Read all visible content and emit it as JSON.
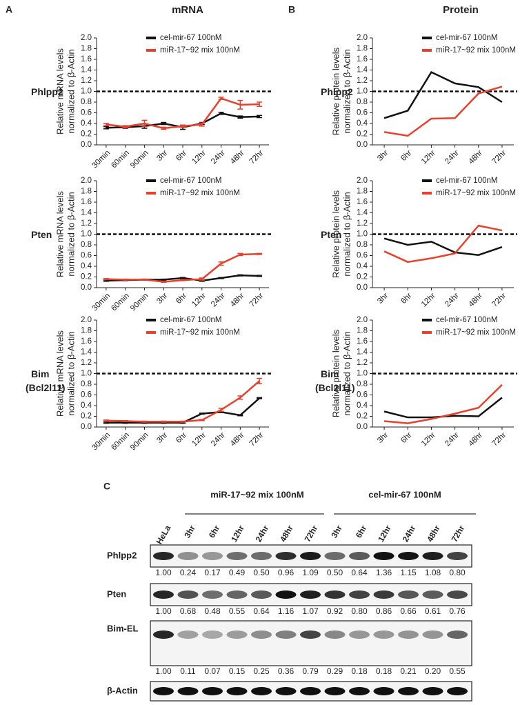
{
  "panels": [
    {
      "letter": "A",
      "title": "mRNA"
    },
    {
      "letter": "B",
      "title": "Protein"
    }
  ],
  "chart_data": [
    {
      "type": "line",
      "label": [
        "Phlpp2"
      ],
      "ylabel": [
        "Relative mRNA levels",
        "normalized to β-Actin"
      ],
      "categories": [
        "30min",
        "60min",
        "90min",
        "3hr",
        "6hr",
        "12hr",
        "24hr",
        "48hr",
        "72hr"
      ],
      "ylim": [
        0,
        2
      ],
      "yticks": [
        {
          "value": 0,
          "label": "0.0"
        },
        0.2,
        0.4,
        0.6,
        0.8,
        {
          "value": 1,
          "label": "1.0"
        },
        1.2,
        1.4,
        1.6,
        1.8,
        {
          "value": 2,
          "label": "2.0"
        }
      ],
      "reference_line": 1,
      "series": [
        {
          "name": "cel-mir-67 100nM",
          "color": "#111111",
          "values": [
            0.32,
            0.33,
            0.35,
            0.4,
            0.33,
            0.4,
            0.59,
            0.52,
            0.53
          ],
          "errors": [
            0.02,
            0.02,
            0.04,
            0.02,
            0.04,
            0.02,
            0.02,
            0.02,
            0.02
          ]
        },
        {
          "name": "miR-17~92 mix 100nM",
          "color": "#e8402a",
          "values": [
            0.38,
            0.34,
            0.4,
            0.31,
            0.35,
            0.38,
            0.87,
            0.75,
            0.76
          ],
          "errors": [
            0.02,
            0.02,
            0.06,
            0.02,
            0.02,
            0.03,
            0.02,
            0.08,
            0.04
          ]
        }
      ]
    },
    {
      "type": "line",
      "label": [
        "Pten"
      ],
      "ylabel": [
        "Relative mRNA levels",
        "normalized to β-Actin"
      ],
      "categories": [
        "30min",
        "60min",
        "90min",
        "3hr",
        "6hr",
        "12hr",
        "24hr",
        "48hr",
        "72hr"
      ],
      "ylim": [
        0,
        2
      ],
      "yticks": [
        {
          "value": 0,
          "label": "0.0"
        },
        0.2,
        0.4,
        0.6,
        0.8,
        {
          "value": 1,
          "label": "1.0"
        },
        1.2,
        1.4,
        1.6,
        1.8,
        {
          "value": 2,
          "label": "2.0"
        }
      ],
      "reference_line": 1,
      "series": [
        {
          "name": "cel-mir-67 100nM",
          "color": "#111111",
          "values": [
            0.13,
            0.14,
            0.15,
            0.15,
            0.18,
            0.13,
            0.18,
            0.23,
            0.22
          ],
          "errors": [
            0.01,
            0.01,
            0.01,
            0.01,
            0.01,
            0.01,
            0.01,
            0.01,
            0.01
          ]
        },
        {
          "name": "miR-17~92 mix 100nM",
          "color": "#e8402a",
          "values": [
            0.16,
            0.15,
            0.15,
            0.11,
            0.14,
            0.16,
            0.45,
            0.62,
            0.63
          ],
          "errors": [
            0.01,
            0.01,
            0.01,
            0.01,
            0.01,
            0.02,
            0.03,
            0.02,
            0.01
          ]
        }
      ]
    },
    {
      "type": "line",
      "label": [
        "Bim",
        "(Bcl2l11)"
      ],
      "ylabel": [
        "Relative mRNA levels",
        "normalized to β-Actin"
      ],
      "categories": [
        "30min",
        "60min",
        "90min",
        "3hr",
        "6hr",
        "12hr",
        "24hr",
        "48hr",
        "72hr"
      ],
      "ylim": [
        0,
        2
      ],
      "yticks": [
        {
          "value": 0,
          "label": "0.0"
        },
        0.2,
        0.4,
        0.6,
        0.8,
        {
          "value": 1,
          "label": "1.0"
        },
        1.2,
        1.4,
        1.6,
        1.8,
        {
          "value": 2,
          "label": "2.0"
        }
      ],
      "reference_line": 1,
      "series": [
        {
          "name": "cel-mir-67 100nM",
          "color": "#111111",
          "values": [
            0.08,
            0.08,
            0.08,
            0.08,
            0.08,
            0.25,
            0.28,
            0.22,
            0.54
          ],
          "errors": [
            0.01,
            0.01,
            0.01,
            0.01,
            0.01,
            0.01,
            0.01,
            0.01,
            0.01
          ]
        },
        {
          "name": "miR-17~92 mix 100nM",
          "color": "#e8402a",
          "values": [
            0.12,
            0.11,
            0.1,
            0.1,
            0.1,
            0.13,
            0.32,
            0.55,
            0.86
          ],
          "errors": [
            0.01,
            0.01,
            0.01,
            0.01,
            0.01,
            0.01,
            0.03,
            0.03,
            0.05
          ]
        }
      ]
    },
    {
      "type": "line",
      "label": [
        "Phlpp2"
      ],
      "ylabel": [
        "Relative protein levels",
        "normalized to β-Actin"
      ],
      "categories": [
        "3hr",
        "6hr",
        "12hr",
        "24hr",
        "48hr",
        "72hr"
      ],
      "ylim": [
        0,
        2
      ],
      "yticks": [
        {
          "value": 0,
          "label": "0.0"
        },
        0.2,
        0.4,
        0.6,
        0.8,
        {
          "value": 1,
          "label": "1.0"
        },
        1.2,
        1.4,
        1.6,
        1.8,
        {
          "value": 2,
          "label": "2.0"
        }
      ],
      "reference_line": 1,
      "series": [
        {
          "name": "cel-mir-67 100nM",
          "color": "#111111",
          "values": [
            0.5,
            0.64,
            1.36,
            1.15,
            1.08,
            0.8
          ]
        },
        {
          "name": "miR-17~92 mix 100nM",
          "color": "#e8402a",
          "values": [
            0.24,
            0.17,
            0.49,
            0.5,
            0.96,
            1.09
          ]
        }
      ]
    },
    {
      "type": "line",
      "label": [
        "Pten"
      ],
      "ylabel": [
        "Relative protein levels",
        "normalized to β-Actin"
      ],
      "categories": [
        "3hr",
        "6hr",
        "12hr",
        "24hr",
        "48hr",
        "72hr"
      ],
      "ylim": [
        0,
        2
      ],
      "yticks": [
        {
          "value": 0,
          "label": "0.0"
        },
        0.2,
        0.4,
        0.6,
        0.8,
        {
          "value": 1,
          "label": "1.0"
        },
        1.2,
        1.4,
        1.6,
        1.8,
        {
          "value": 2,
          "label": "2.0"
        }
      ],
      "reference_line": 1,
      "series": [
        {
          "name": "cel-mir-67 100nM",
          "color": "#111111",
          "values": [
            0.92,
            0.8,
            0.86,
            0.66,
            0.61,
            0.76
          ]
        },
        {
          "name": "miR-17~92 mix 100nM",
          "color": "#e8402a",
          "values": [
            0.68,
            0.48,
            0.55,
            0.64,
            1.16,
            1.07
          ]
        }
      ]
    },
    {
      "type": "line",
      "label": [
        "Bim",
        "(Bcl2l11)"
      ],
      "ylabel": [
        "Relative protein levels",
        "normalized to β-Actin"
      ],
      "categories": [
        "3hr",
        "6hr",
        "12hr",
        "24hr",
        "48hr",
        "72hr"
      ],
      "ylim": [
        0,
        2
      ],
      "yticks": [
        {
          "value": 0,
          "label": "0.0"
        },
        0.2,
        0.4,
        0.6,
        0.8,
        {
          "value": 1,
          "label": "1.0"
        },
        1.2,
        1.4,
        1.6,
        1.8,
        {
          "value": 2,
          "label": "2.0"
        }
      ],
      "reference_line": 1,
      "series": [
        {
          "name": "cel-mir-67 100nM",
          "color": "#111111",
          "values": [
            0.29,
            0.18,
            0.18,
            0.21,
            0.2,
            0.55
          ]
        },
        {
          "name": "miR-17~92 mix 100nM",
          "color": "#e8402a",
          "values": [
            0.11,
            0.07,
            0.15,
            0.25,
            0.36,
            0.79
          ]
        }
      ]
    }
  ],
  "blot": {
    "letter": "C",
    "groups": [
      "miR-17~92 mix 100nM",
      "cel-mir-67 100nM"
    ],
    "lanes": [
      "HeLa",
      "3hr",
      "6hr",
      "12hr",
      "24hr",
      "48hr",
      "72hr",
      "3hr",
      "6hr",
      "12hr",
      "24hr",
      "48hr",
      "72hr"
    ],
    "rows": [
      {
        "name": "Phlpp2",
        "quant": [
          "1.00",
          "0.24",
          "0.17",
          "0.49",
          "0.50",
          "0.96",
          "1.09",
          "0.50",
          "0.64",
          "1.36",
          "1.15",
          "1.08",
          "0.80"
        ]
      },
      {
        "name": "Pten",
        "quant": [
          "1.00",
          "0.68",
          "0.48",
          "0.55",
          "0.64",
          "1.16",
          "1.07",
          "0.92",
          "0.80",
          "0.86",
          "0.66",
          "0.61",
          "0.76"
        ]
      },
      {
        "name": "Bim-EL",
        "quant": [
          "1.00",
          "0.11",
          "0.07",
          "0.15",
          "0.25",
          "0.36",
          "0.79",
          "0.29",
          "0.18",
          "0.18",
          "0.21",
          "0.20",
          "0.55"
        ]
      },
      {
        "name": "β-Actin"
      }
    ]
  }
}
